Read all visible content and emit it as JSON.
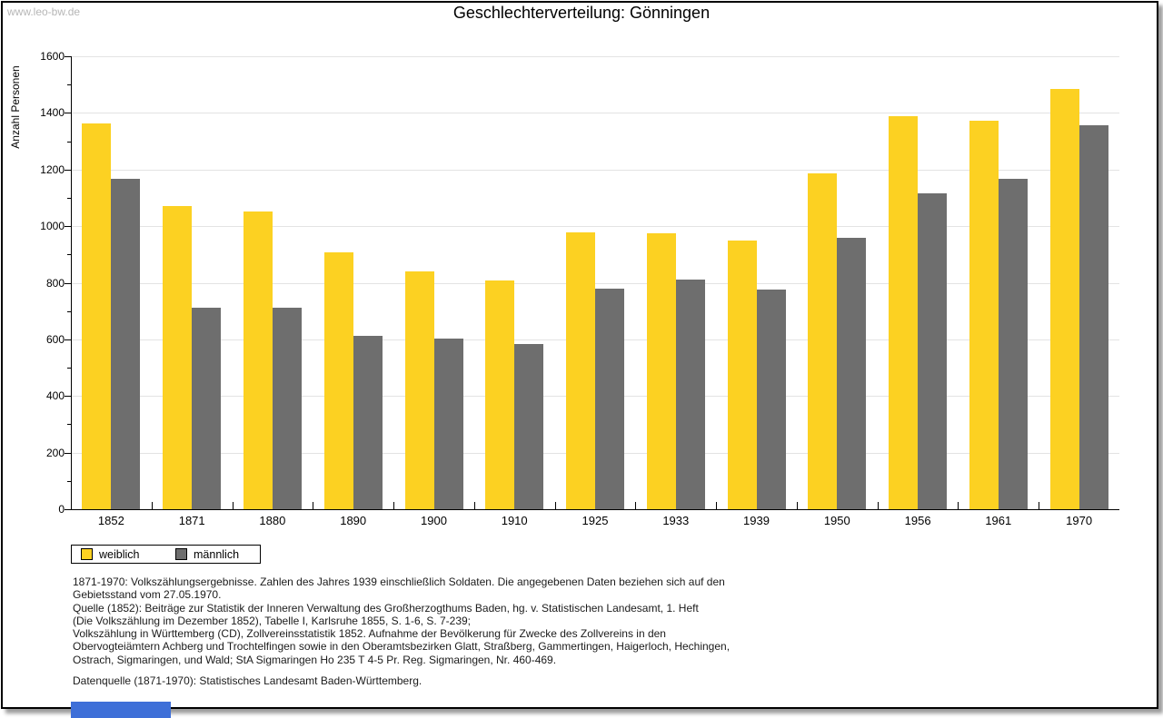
{
  "header": {
    "watermark": "www.leo-bw.de",
    "title": "Geschlechterverteilung: Gönningen"
  },
  "chart_data": {
    "type": "bar",
    "title": "Geschlechterverteilung: Gönningen",
    "xlabel": "",
    "ylabel": "Anzahl Personen",
    "ylim": [
      0,
      1600
    ],
    "ytick_step": 200,
    "grid": true,
    "legend_position": "bottom-left",
    "categories": [
      "1852",
      "1871",
      "1880",
      "1890",
      "1900",
      "1910",
      "1925",
      "1933",
      "1939",
      "1950",
      "1956",
      "1961",
      "1970"
    ],
    "series": [
      {
        "name": "weiblich",
        "color": "#fcd122",
        "values": [
          1362,
          1070,
          1052,
          906,
          841,
          808,
          977,
          974,
          950,
          1186,
          1387,
          1373,
          1486
        ]
      },
      {
        "name": "männlich",
        "color": "#6e6e6e",
        "values": [
          1167,
          712,
          712,
          611,
          603,
          584,
          778,
          812,
          776,
          960,
          1117,
          1166,
          1355
        ]
      }
    ]
  },
  "footer": {
    "lines": [
      "1871-1970: Volkszählungsergebnisse. Zahlen des Jahres 1939 einschließlich Soldaten. Die angegebenen Daten beziehen sich auf den",
      "Gebietsstand vom 27.05.1970.",
      "Quelle (1852): Beiträge zur Statistik der Inneren Verwaltung des Großherzogthums Baden, hg. v. Statistischen Landesamt, 1. Heft",
      "(Die Volkszählung im Dezember 1852), Tabelle I, Karlsruhe 1855, S. 1-6, S. 7-239;",
      "Volkszählung in Württemberg (CD), Zollvereinsstatistik 1852. Aufnahme der Bevölkerung für Zwecke des Zollvereins in den",
      "Obervogteiämtern Achberg und Trochtelfingen sowie in den Oberamtsbezirken Glatt, Straßberg, Gammertingen, Haigerloch, Hechingen,",
      "Ostrach, Sigmaringen, und Wald; StA Sigmaringen Ho 235 T 4-5 Pr. Reg. Sigmaringen, Nr. 460-469.",
      "Datenquelle (1871-1970): Statistisches Landesamt Baden-Württemberg."
    ]
  },
  "colors": {
    "weiblich": "#fcd122",
    "männlich": "#6e6e6e",
    "gridline": "#e3e3e3",
    "watermark": "#b6b6b6",
    "status_bar": "#3e6fd8"
  }
}
